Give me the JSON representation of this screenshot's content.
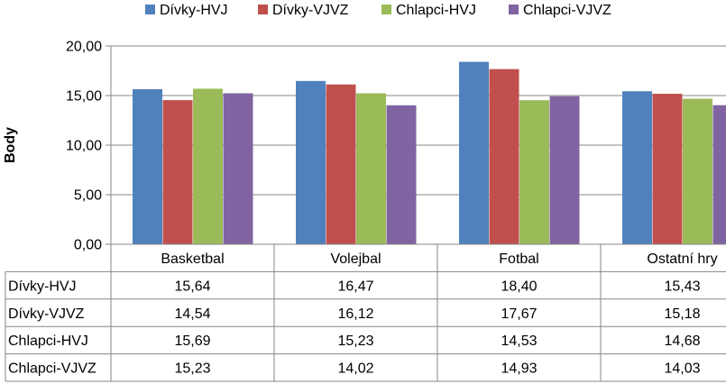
{
  "chart_data": {
    "type": "bar",
    "title": "",
    "xlabel": "",
    "ylabel": "Body",
    "ylim": [
      0,
      20
    ],
    "yticks": [
      "0,00",
      "5,00",
      "10,00",
      "15,00",
      "20,00"
    ],
    "ytick_values": [
      0,
      5,
      10,
      15,
      20
    ],
    "grid": true,
    "legend_position": "top",
    "categories": [
      "Basketbal",
      "Volejbal",
      "Fotbal",
      "Ostatní hry"
    ],
    "series": [
      {
        "name": "Dívky-HVJ",
        "color": "#4F81BD",
        "values": [
          15.64,
          16.47,
          18.4,
          15.43
        ],
        "labels": [
          "15,64",
          "16,47",
          "18,40",
          "15,43"
        ]
      },
      {
        "name": "Dívky-VJVZ",
        "color": "#C0504D",
        "values": [
          14.54,
          16.12,
          17.67,
          15.18
        ],
        "labels": [
          "14,54",
          "16,12",
          "17,67",
          "15,18"
        ]
      },
      {
        "name": "Chlapci-HVJ",
        "color": "#9BBB59",
        "values": [
          15.69,
          15.23,
          14.53,
          14.68
        ],
        "labels": [
          "15,69",
          "15,23",
          "14,53",
          "14,68"
        ]
      },
      {
        "name": "Chlapci-VJVZ",
        "color": "#8064A2",
        "values": [
          15.23,
          14.02,
          14.93,
          14.03
        ],
        "labels": [
          "15,23",
          "14,02",
          "14,93",
          "14,03"
        ]
      }
    ]
  }
}
